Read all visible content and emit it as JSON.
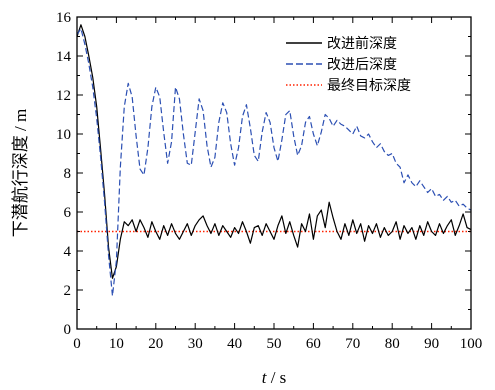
{
  "chart_data": {
    "type": "line",
    "title": "",
    "xlabel_italic": "t",
    "xlabel_rest": " / s",
    "ylabel": "下潜航行深度 / m",
    "xlim": [
      0,
      100
    ],
    "ylim": [
      0,
      16
    ],
    "x_ticks": [
      0,
      10,
      20,
      30,
      40,
      50,
      60,
      70,
      80,
      90,
      100
    ],
    "y_ticks": [
      0,
      2,
      4,
      6,
      8,
      10,
      12,
      14,
      16
    ],
    "x_tick_labels": [
      "0",
      "10",
      "20",
      "30",
      "40",
      "50",
      "60",
      "70",
      "80",
      "90",
      "100"
    ],
    "y_tick_labels": [
      "0",
      "2",
      "4",
      "6",
      "8",
      "10",
      "12",
      "14",
      "16"
    ],
    "legend_position": "top-right",
    "series": [
      {
        "name": "改进前深度",
        "color": "#000000",
        "style": "solid",
        "points": [
          [
            0,
            15.0
          ],
          [
            1,
            15.6
          ],
          [
            2,
            15.0
          ],
          [
            3,
            14.0
          ],
          [
            4,
            12.9
          ],
          [
            5,
            11.4
          ],
          [
            6,
            9.2
          ],
          [
            7,
            6.9
          ],
          [
            8,
            4.2
          ],
          [
            9,
            2.6
          ],
          [
            10,
            3.2
          ],
          [
            11,
            4.6
          ],
          [
            12,
            5.5
          ],
          [
            13,
            5.3
          ],
          [
            14,
            5.6
          ],
          [
            15,
            5.0
          ],
          [
            16,
            5.6
          ],
          [
            17,
            5.2
          ],
          [
            18,
            4.7
          ],
          [
            19,
            5.5
          ],
          [
            20,
            5.0
          ],
          [
            21,
            4.6
          ],
          [
            22,
            5.3
          ],
          [
            23,
            4.8
          ],
          [
            24,
            5.4
          ],
          [
            25,
            4.9
          ],
          [
            26,
            4.6
          ],
          [
            27,
            5.0
          ],
          [
            28,
            5.4
          ],
          [
            29,
            4.8
          ],
          [
            30,
            5.3
          ],
          [
            31,
            5.6
          ],
          [
            32,
            5.8
          ],
          [
            33,
            5.3
          ],
          [
            34,
            4.9
          ],
          [
            35,
            5.4
          ],
          [
            36,
            4.8
          ],
          [
            37,
            5.3
          ],
          [
            38,
            5.0
          ],
          [
            39,
            4.7
          ],
          [
            40,
            5.2
          ],
          [
            41,
            4.9
          ],
          [
            42,
            5.5
          ],
          [
            43,
            5.0
          ],
          [
            44,
            4.4
          ],
          [
            45,
            5.2
          ],
          [
            46,
            5.3
          ],
          [
            47,
            4.8
          ],
          [
            48,
            5.4
          ],
          [
            49,
            5.0
          ],
          [
            50,
            4.6
          ],
          [
            51,
            5.3
          ],
          [
            52,
            5.8
          ],
          [
            53,
            4.9
          ],
          [
            54,
            5.5
          ],
          [
            55,
            4.8
          ],
          [
            56,
            4.2
          ],
          [
            57,
            5.4
          ],
          [
            58,
            5.0
          ],
          [
            59,
            5.9
          ],
          [
            60,
            4.6
          ],
          [
            61,
            5.8
          ],
          [
            62,
            6.1
          ],
          [
            63,
            5.2
          ],
          [
            64,
            6.5
          ],
          [
            65,
            5.7
          ],
          [
            66,
            5.0
          ],
          [
            67,
            4.6
          ],
          [
            68,
            5.4
          ],
          [
            69,
            4.8
          ],
          [
            70,
            5.6
          ],
          [
            71,
            4.9
          ],
          [
            72,
            5.4
          ],
          [
            73,
            4.5
          ],
          [
            74,
            5.3
          ],
          [
            75,
            4.9
          ],
          [
            76,
            5.4
          ],
          [
            77,
            4.7
          ],
          [
            78,
            5.2
          ],
          [
            79,
            4.8
          ],
          [
            80,
            5.0
          ],
          [
            81,
            5.5
          ],
          [
            82,
            4.6
          ],
          [
            83,
            5.3
          ],
          [
            84,
            4.9
          ],
          [
            85,
            5.2
          ],
          [
            86,
            4.6
          ],
          [
            87,
            5.3
          ],
          [
            88,
            4.8
          ],
          [
            89,
            5.5
          ],
          [
            90,
            5.0
          ],
          [
            91,
            4.8
          ],
          [
            92,
            5.4
          ],
          [
            93,
            4.9
          ],
          [
            94,
            5.3
          ],
          [
            95,
            5.6
          ],
          [
            96,
            4.8
          ],
          [
            97,
            5.3
          ],
          [
            98,
            5.9
          ],
          [
            99,
            5.2
          ],
          [
            100,
            5.1
          ]
        ]
      },
      {
        "name": "改进后深度",
        "color": "#2b4fb3",
        "style": "dashed",
        "points": [
          [
            0,
            15.1
          ],
          [
            1,
            15.4
          ],
          [
            2,
            14.6
          ],
          [
            3,
            13.6
          ],
          [
            4,
            12.4
          ],
          [
            5,
            10.8
          ],
          [
            6,
            8.8
          ],
          [
            7,
            6.5
          ],
          [
            8,
            3.8
          ],
          [
            9,
            1.7
          ],
          [
            10,
            3.5
          ],
          [
            11,
            8.3
          ],
          [
            12,
            11.4
          ],
          [
            13,
            12.6
          ],
          [
            14,
            11.9
          ],
          [
            15,
            9.9
          ],
          [
            16,
            8.2
          ],
          [
            17,
            7.9
          ],
          [
            18,
            9.3
          ],
          [
            19,
            11.4
          ],
          [
            20,
            12.4
          ],
          [
            21,
            11.9
          ],
          [
            22,
            10.1
          ],
          [
            23,
            8.5
          ],
          [
            24,
            9.6
          ],
          [
            25,
            12.4
          ],
          [
            26,
            11.8
          ],
          [
            27,
            10.0
          ],
          [
            28,
            8.5
          ],
          [
            29,
            8.4
          ],
          [
            30,
            10.1
          ],
          [
            31,
            11.8
          ],
          [
            32,
            11.2
          ],
          [
            33,
            9.4
          ],
          [
            34,
            8.3
          ],
          [
            35,
            8.8
          ],
          [
            36,
            10.6
          ],
          [
            37,
            11.6
          ],
          [
            38,
            11.1
          ],
          [
            39,
            9.5
          ],
          [
            40,
            8.4
          ],
          [
            41,
            9.3
          ],
          [
            42,
            10.9
          ],
          [
            43,
            11.5
          ],
          [
            44,
            10.3
          ],
          [
            45,
            8.9
          ],
          [
            46,
            8.6
          ],
          [
            47,
            10.1
          ],
          [
            48,
            11.1
          ],
          [
            49,
            10.6
          ],
          [
            50,
            9.3
          ],
          [
            51,
            8.6
          ],
          [
            52,
            9.7
          ],
          [
            53,
            11.0
          ],
          [
            54,
            11.2
          ],
          [
            55,
            9.9
          ],
          [
            56,
            8.9
          ],
          [
            57,
            9.4
          ],
          [
            58,
            10.6
          ],
          [
            59,
            10.9
          ],
          [
            60,
            10.0
          ],
          [
            61,
            9.4
          ],
          [
            62,
            10.1
          ],
          [
            63,
            11.0
          ],
          [
            64,
            10.8
          ],
          [
            65,
            10.4
          ],
          [
            66,
            10.7
          ],
          [
            67,
            10.5
          ],
          [
            68,
            10.4
          ],
          [
            69,
            10.2
          ],
          [
            70,
            10.0
          ],
          [
            71,
            10.4
          ],
          [
            72,
            9.9
          ],
          [
            73,
            9.8
          ],
          [
            74,
            10.0
          ],
          [
            75,
            9.6
          ],
          [
            76,
            9.3
          ],
          [
            77,
            9.5
          ],
          [
            78,
            9.1
          ],
          [
            79,
            8.9
          ],
          [
            80,
            9.0
          ],
          [
            81,
            8.5
          ],
          [
            82,
            8.3
          ],
          [
            83,
            7.5
          ],
          [
            84,
            7.9
          ],
          [
            85,
            7.5
          ],
          [
            86,
            7.3
          ],
          [
            87,
            7.6
          ],
          [
            88,
            7.3
          ],
          [
            89,
            7.0
          ],
          [
            90,
            7.2
          ],
          [
            91,
            6.8
          ],
          [
            92,
            6.9
          ],
          [
            93,
            6.6
          ],
          [
            94,
            6.8
          ],
          [
            95,
            6.5
          ],
          [
            96,
            6.6
          ],
          [
            97,
            6.3
          ],
          [
            98,
            6.4
          ],
          [
            99,
            6.2
          ],
          [
            100,
            6.1
          ]
        ]
      },
      {
        "name": "最终目标深度",
        "color": "#ff2200",
        "style": "dotted",
        "points": [
          [
            0,
            5.0
          ],
          [
            100,
            5.0
          ]
        ]
      }
    ]
  }
}
